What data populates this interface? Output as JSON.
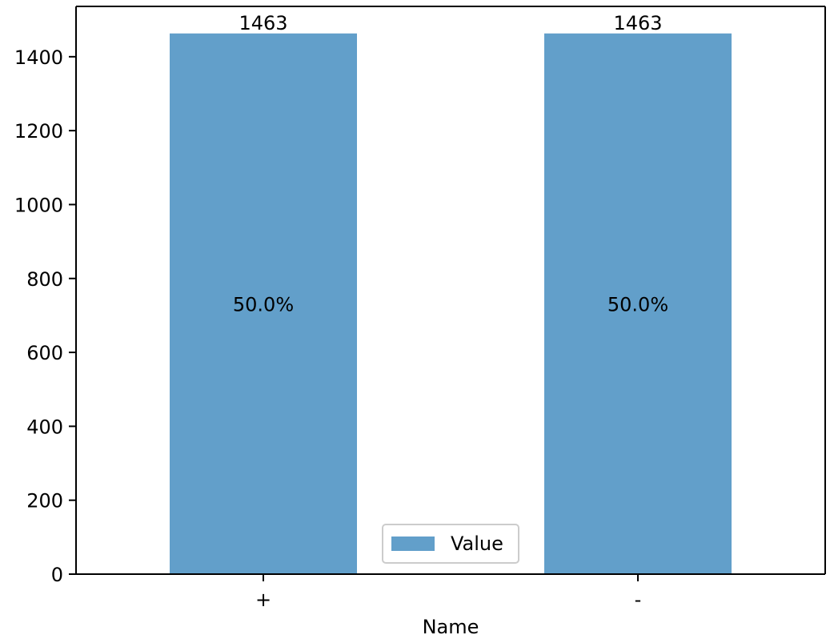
{
  "chart_data": {
    "type": "bar",
    "categories": [
      "+",
      "-"
    ],
    "series": [
      {
        "name": "Value",
        "values": [
          1463,
          1463
        ],
        "color": "#629fca"
      }
    ],
    "value_labels": [
      "1463",
      "1463"
    ],
    "percent_labels": [
      "50.0%",
      "50.0%"
    ],
    "title": "",
    "xlabel": "Name",
    "ylabel": "",
    "ylim": [
      0,
      1536.15
    ],
    "yticks": [
      0,
      200,
      400,
      600,
      800,
      1000,
      1200,
      1400
    ],
    "grid": false,
    "legend": {
      "position": "bottom-center",
      "entries": [
        "Value"
      ]
    }
  }
}
